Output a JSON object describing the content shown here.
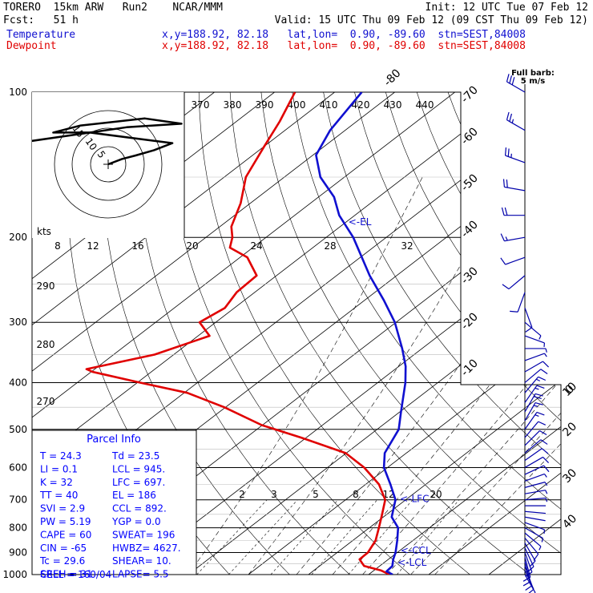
{
  "header": {
    "line1_left": "TORERO  15km ARW   Run2    NCAR/MMM",
    "line1_right": "Init: 12 UTC Tue 07 Feb 12",
    "line2_left": "Fcst:   51 h",
    "line2_right": "Valid: 15 UTC Thu 09 Feb 12 (09 CST Thu 09 Feb 12)",
    "temp_label": "Temperature",
    "dew_label": "Dewpoint",
    "loc_line": "x,y=188.92, 82.18   lat,lon=  0.90, -89.60  stn=SEST,84008"
  },
  "colors": {
    "temperature": "#1010d0",
    "dewpoint": "#e00000"
  },
  "chart_data": {
    "type": "line",
    "title": "",
    "xlabel": "",
    "ylabel": "",
    "y_axis": {
      "scale": "log",
      "pressure_ticks": [
        100,
        200,
        300,
        400,
        500,
        600,
        700,
        800,
        900,
        1000
      ]
    },
    "isotherm_labels": [
      "-80",
      "-70",
      "-60",
      "-50",
      "-40",
      "-30",
      "-20",
      "-10",
      "0",
      "10",
      "20",
      "30",
      "40"
    ],
    "theta_labels": [
      "370",
      "380",
      "390",
      "400",
      "410",
      "420",
      "430",
      "440"
    ],
    "theta_labels_low": [
      "290",
      "280",
      "270"
    ],
    "mixing_ratio_labels": [
      "2",
      "3",
      "5",
      "8",
      "12",
      "20"
    ],
    "hodo_label": "kts",
    "hodo_ring_labels": [
      "15",
      "10",
      "5"
    ],
    "hodo_axis_labels": [
      "8",
      "12",
      "16",
      "20",
      "24",
      "28",
      "32"
    ],
    "wind_key": {
      "title": "Full barb:",
      "value": "5 m/s"
    },
    "series": [
      {
        "name": "Temperature",
        "pressure": [
          1000,
          985,
          960,
          930,
          900,
          850,
          800,
          760,
          700,
          650,
          600,
          560,
          500,
          460,
          400,
          370,
          340,
          300,
          270,
          240,
          200,
          180,
          165,
          150,
          135,
          120,
          100
        ],
        "temp_c": [
          24.0,
          22.3,
          22.1,
          20.8,
          19.7,
          17.4,
          14.8,
          11.4,
          8.3,
          4.1,
          -0.6,
          -3.6,
          -6.4,
          -9.8,
          -15.4,
          -18.9,
          -23.3,
          -30.2,
          -36.8,
          -44.5,
          -55.5,
          -62.6,
          -67.4,
          -74.0,
          -79.5,
          -82.5,
          -85.5
        ]
      },
      {
        "name": "Dewpoint",
        "pressure": [
          1000,
          980,
          960,
          930,
          900,
          850,
          800,
          750,
          700,
          650,
          600,
          560,
          520,
          490,
          450,
          420,
          400,
          380,
          375,
          350,
          320,
          300,
          280,
          260,
          240,
          220,
          210,
          200,
          190,
          170,
          150,
          130,
          115,
          100
        ],
        "temp_c": [
          23.5,
          21.1,
          17.4,
          15.2,
          15.1,
          13.8,
          11.6,
          9.2,
          6.6,
          2.2,
          -3.9,
          -10.1,
          -20.9,
          -30.1,
          -40.2,
          -49.5,
          -59.6,
          -69.8,
          -71.4,
          -63.2,
          -58.1,
          -62.7,
          -61.6,
          -63.0,
          -63.3,
          -68.8,
          -73.8,
          -75.6,
          -78.1,
          -81.6,
          -86.4,
          -89.9,
          -92.8,
          -96.6
        ]
      }
    ],
    "levels": [
      {
        "name": "<-EL",
        "pressure": 186
      },
      {
        "name": "<-LFC",
        "pressure": 697
      },
      {
        "name": "<-CCL",
        "pressure": 892
      },
      {
        "name": "<-LCL",
        "pressure": 945
      }
    ],
    "winds": {
      "pressure": [
        1000,
        980,
        960,
        940,
        920,
        900,
        880,
        860,
        840,
        820,
        800,
        780,
        760,
        740,
        720,
        700,
        680,
        660,
        640,
        620,
        600,
        580,
        560,
        540,
        520,
        500,
        480,
        460,
        440,
        420,
        400,
        380,
        360,
        340,
        320,
        300,
        280,
        260,
        240,
        220,
        200,
        180,
        160,
        140,
        120,
        100
      ],
      "direction_deg": [
        150,
        155,
        160,
        165,
        165,
        160,
        155,
        150,
        140,
        130,
        120,
        110,
        100,
        95,
        90,
        85,
        80,
        75,
        70,
        65,
        60,
        55,
        50,
        45,
        40,
        35,
        30,
        30,
        35,
        40,
        50,
        60,
        70,
        90,
        110,
        130,
        160,
        200,
        230,
        250,
        260,
        270,
        280,
        290,
        300,
        300
      ],
      "speed_ms": [
        4,
        5,
        6,
        7,
        8,
        8,
        7,
        6,
        5,
        4,
        3,
        3,
        2,
        2,
        2,
        3,
        3,
        4,
        4,
        5,
        5,
        6,
        6,
        7,
        7,
        8,
        9,
        10,
        9,
        8,
        6,
        5,
        4,
        3,
        3,
        4,
        5,
        5,
        6,
        7,
        8,
        10,
        12,
        13,
        14,
        15
      ]
    },
    "hodograph_uv": [
      [
        0,
        0
      ],
      [
        3,
        3
      ],
      [
        6,
        5
      ],
      [
        10,
        8
      ],
      [
        14,
        12
      ],
      [
        8,
        14
      ],
      [
        -4,
        18
      ],
      [
        -12,
        18
      ],
      [
        -6,
        22
      ],
      [
        8,
        26
      ],
      [
        16,
        23
      ],
      [
        4,
        21
      ],
      [
        -12,
        15
      ],
      [
        -20,
        12
      ],
      [
        -28,
        9
      ]
    ]
  },
  "parcel_info": {
    "title": "Parcel Info",
    "rows": [
      [
        "T  =    24.3",
        "Td =  23.5"
      ],
      [
        "LI =     0.1",
        "LCL =  945."
      ],
      [
        "K  =      32",
        "LFC =  697."
      ],
      [
        "TT =      40",
        "EL  =  186"
      ],
      [
        "SVI =    2.9",
        "CCL =  892."
      ],
      [
        "PW =    5.19",
        "YGP =  0.0"
      ],
      [
        "CAPE =    60",
        "SWEAT=  196"
      ],
      [
        "CIN =    -65",
        "HWBZ= 4627."
      ],
      [
        "Tc =    29.6",
        "SHEAR=  10."
      ],
      [
        "SREH =    31",
        "LAPSE=  5.5"
      ]
    ],
    "cell": "CELL = 160/04"
  }
}
